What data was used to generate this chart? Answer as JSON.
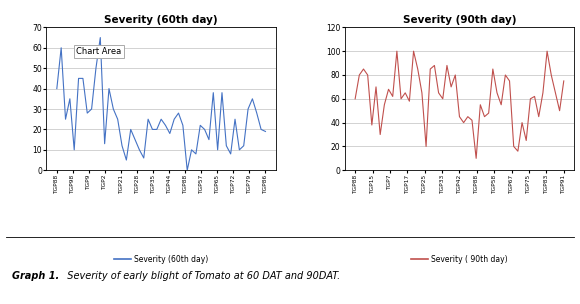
{
  "chart1_title": "Severity (60th day)",
  "chart2_title": "Severity (90th day)",
  "chart1_xlabel_ticks": [
    "TGP88",
    "TGP98",
    "TGP9",
    "TGP2",
    "TGP21",
    "TGP28",
    "TGP35",
    "TGP44",
    "TGP88",
    "TGP57",
    "TGP65",
    "TGP72",
    "TGP79",
    "TGP86"
  ],
  "chart2_xlabel_ticks": [
    "TGP88",
    "TGP15",
    "TGP7",
    "TGP17",
    "TGP25",
    "TGP33",
    "TGP42",
    "TGP88",
    "TGP58",
    "TGP67",
    "TGP75",
    "TGP83",
    "TGP91"
  ],
  "chart1_ylim": [
    0,
    70
  ],
  "chart2_ylim": [
    0,
    120
  ],
  "chart1_yticks": [
    0,
    10,
    20,
    30,
    40,
    50,
    60,
    70
  ],
  "chart2_yticks": [
    0,
    20,
    40,
    60,
    80,
    100,
    120
  ],
  "chart1_color": "#4472C4",
  "chart2_color": "#C0504D",
  "chart1_legend": "Severity (60th day)",
  "chart2_legend": "Severity ( 90th day)",
  "caption_bold": "Graph 1.",
  "caption_italic": "  Severity of early blight of Tomato at 60 DAT and 90DAT.",
  "chart1_annotation": "Chart Area",
  "chart1_values": [
    40,
    60,
    25,
    35,
    10,
    45,
    45,
    28,
    30,
    50,
    65,
    13,
    40,
    30,
    25,
    12,
    5,
    20,
    15,
    10,
    6,
    25,
    20,
    20,
    25,
    22,
    18,
    25,
    28,
    22,
    0,
    10,
    8,
    22,
    20,
    15,
    38,
    10,
    38,
    12,
    8,
    25,
    10,
    12,
    30,
    35,
    28,
    20,
    19
  ],
  "chart2_values": [
    60,
    80,
    85,
    80,
    38,
    70,
    30,
    55,
    68,
    62,
    100,
    60,
    65,
    58,
    100,
    85,
    65,
    20,
    85,
    88,
    65,
    60,
    88,
    70,
    80,
    45,
    40,
    45,
    42,
    10,
    55,
    45,
    48,
    85,
    65,
    55,
    80,
    75,
    20,
    16,
    40,
    25,
    60,
    62,
    45,
    65,
    100,
    80,
    65,
    50,
    75
  ]
}
